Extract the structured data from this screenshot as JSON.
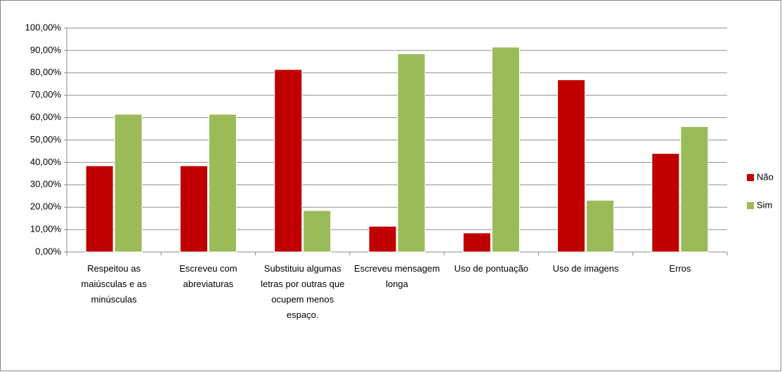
{
  "chart_data": {
    "type": "bar",
    "categories": [
      "Respeitou as maiúsculas e as minúsculas",
      "Escreveu com abreviaturas",
      "Substituiu algumas letras por outras que ocupem menos espaço.",
      "Escreveu mensagem longa",
      "Uso de pontuação",
      "Uso de imagens",
      "Erros"
    ],
    "series": [
      {
        "name": "Não",
        "color": "#c00000",
        "values": [
          38.5,
          38.5,
          81.5,
          11.5,
          8.5,
          76.9,
          44
        ]
      },
      {
        "name": "Sim",
        "color": "#9bbb59",
        "values": [
          61.5,
          61.5,
          18.5,
          88.5,
          91.5,
          23.1,
          56
        ]
      }
    ],
    "ylim": [
      0,
      100
    ],
    "yticks": [
      {
        "value": 0,
        "label": "0,00%"
      },
      {
        "value": 10,
        "label": "10,00%"
      },
      {
        "value": 20,
        "label": "20,00%"
      },
      {
        "value": 30,
        "label": "30,00%"
      },
      {
        "value": 40,
        "label": "40,00%"
      },
      {
        "value": 50,
        "label": "50,00%"
      },
      {
        "value": 60,
        "label": "60,00%"
      },
      {
        "value": 70,
        "label": "70,00%"
      },
      {
        "value": 80,
        "label": "80,00%"
      },
      {
        "value": 90,
        "label": "90,00%"
      },
      {
        "value": 100,
        "label": "100,00%"
      }
    ],
    "grid": true,
    "legend": "right"
  }
}
